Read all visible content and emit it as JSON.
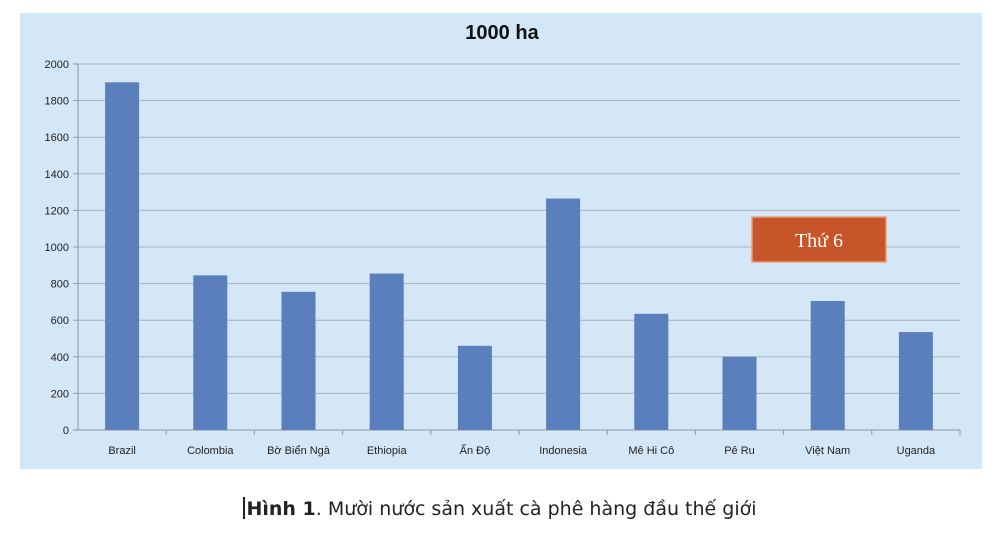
{
  "chart_data": {
    "type": "bar",
    "title": "1000 ha",
    "categories": [
      "Brazil",
      "Colombia",
      "Bờ Biển Ngà",
      "Ethiopia",
      "Ấn Độ",
      "Indonesia",
      "Mê Hi Cô",
      "Pê Ru",
      "Việt Nam",
      "Uganda"
    ],
    "values": [
      1900,
      845,
      755,
      855,
      460,
      1265,
      635,
      400,
      705,
      535
    ],
    "ylim": [
      0,
      2000
    ],
    "yticks": [
      0,
      200,
      400,
      600,
      800,
      1000,
      1200,
      1400,
      1600,
      1800,
      2000
    ],
    "grid": true,
    "bar_color": "#5b7fbd",
    "annotation": {
      "text": "Thứ 6",
      "fill": "#c8542a",
      "category": "Việt Nam"
    }
  },
  "caption": {
    "bold": "Hình 1",
    "text": ". Mười nước sản xuất cà phê hàng đầu thế giới"
  }
}
